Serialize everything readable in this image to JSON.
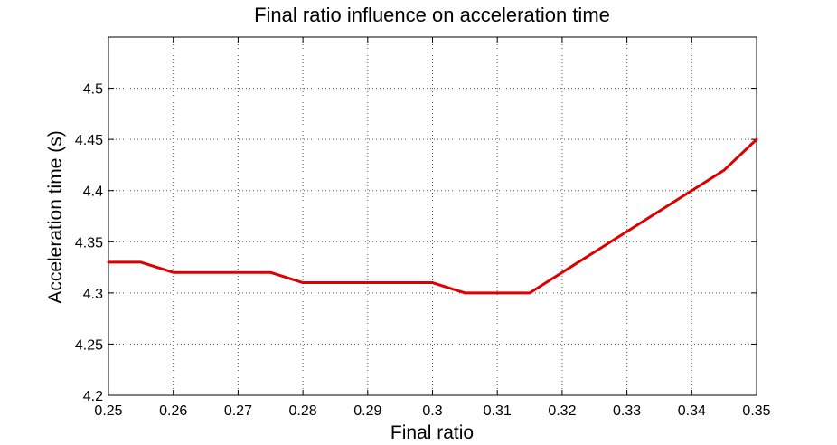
{
  "chart_data": {
    "type": "line",
    "title": "Final ratio influence on acceleration time",
    "xlabel": "Final ratio",
    "ylabel": "Acceleration time (s)",
    "xlim": [
      0.25,
      0.35
    ],
    "ylim": [
      4.2,
      4.55
    ],
    "xticks": [
      "0.25",
      "0.26",
      "0.27",
      "0.28",
      "0.29",
      "0.3",
      "0.31",
      "0.32",
      "0.33",
      "0.34",
      "0.35"
    ],
    "yticks": [
      "4.2",
      "4.25",
      "4.3",
      "4.35",
      "4.4",
      "4.45",
      "4.5"
    ],
    "grid": true,
    "series": [
      {
        "color": "#dd0000",
        "x": [
          0.25,
          0.255,
          0.26,
          0.265,
          0.27,
          0.275,
          0.28,
          0.285,
          0.29,
          0.295,
          0.3,
          0.305,
          0.31,
          0.315,
          0.32,
          0.325,
          0.33,
          0.335,
          0.34,
          0.345,
          0.35
        ],
        "y": [
          4.33,
          4.33,
          4.32,
          4.32,
          4.32,
          4.32,
          4.31,
          4.31,
          4.31,
          4.31,
          4.31,
          4.3,
          4.3,
          4.3,
          4.32,
          4.34,
          4.36,
          4.38,
          4.4,
          4.42,
          4.45
        ]
      }
    ]
  }
}
